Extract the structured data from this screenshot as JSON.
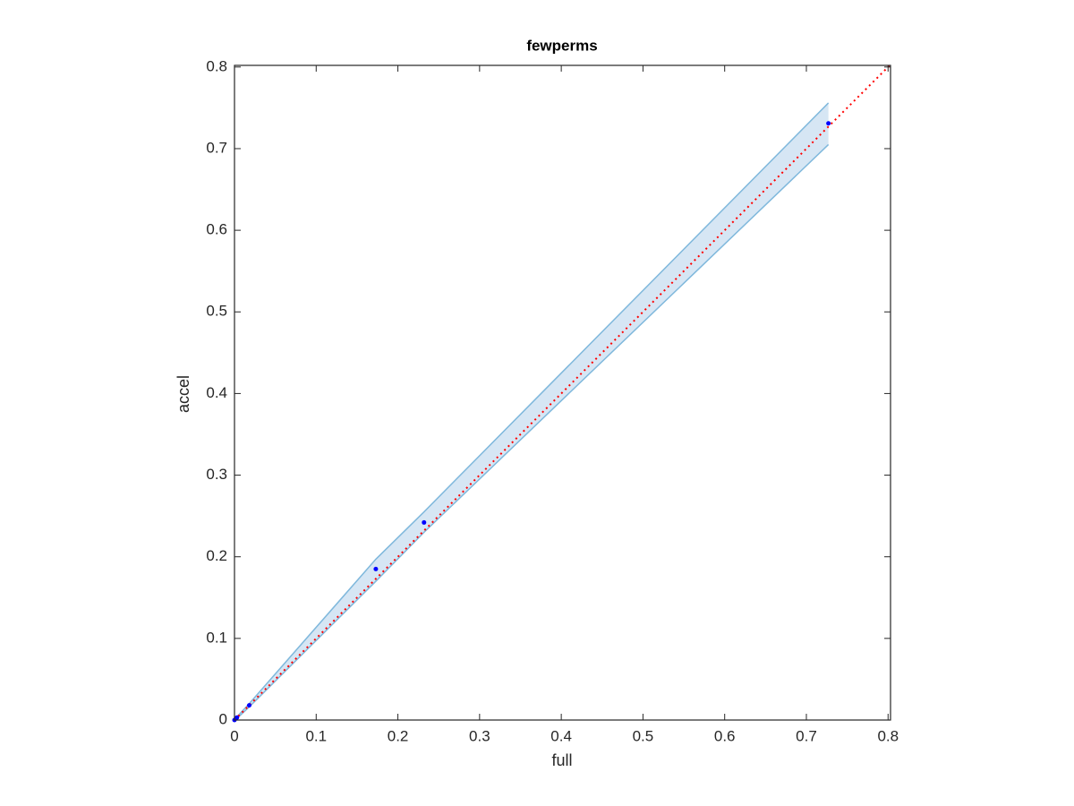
{
  "chart_data": {
    "type": "scatter",
    "title": "fewperms",
    "xlabel": "full",
    "ylabel": "accel",
    "x": [
      0,
      0.003,
      0.018,
      0.173,
      0.232,
      0.727
    ],
    "values": [
      0,
      0.003,
      0.018,
      0.185,
      0.242,
      0.731
    ],
    "color": "#0000ff",
    "band": {
      "x": [
        0,
        0.003,
        0.018,
        0.173,
        0.232,
        0.727
      ],
      "upper": [
        0,
        0.004,
        0.02,
        0.197,
        0.255,
        0.756
      ],
      "lower": [
        0,
        0.002,
        0.016,
        0.17,
        0.23,
        0.705
      ],
      "color": "#7fb8dc",
      "fill": "#d6e6f4"
    },
    "diagonal": {
      "x": [
        0,
        0.803
      ],
      "y": [
        0,
        0.803
      ],
      "color": "#ff0000"
    },
    "xlim": [
      0,
      0.803
    ],
    "ylim": [
      0,
      0.802
    ],
    "xticks": [
      0,
      0.1,
      0.2,
      0.3,
      0.4,
      0.5,
      0.6,
      0.7,
      0.8
    ],
    "yticks": [
      0,
      0.1,
      0.2,
      0.3,
      0.4,
      0.5,
      0.6,
      0.7,
      0.8
    ]
  }
}
